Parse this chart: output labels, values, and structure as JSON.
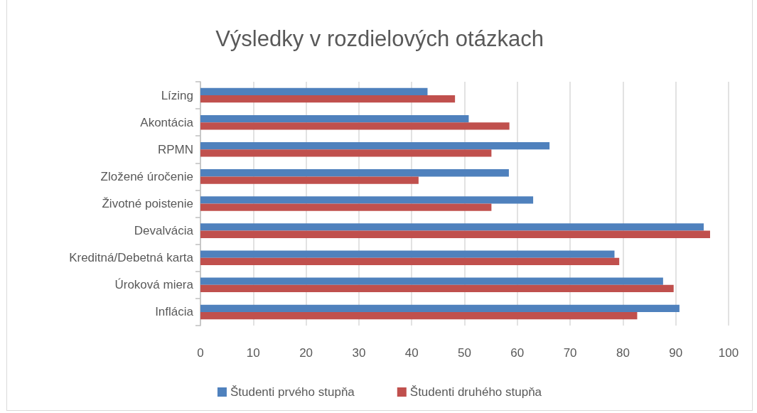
{
  "chart_data": {
    "type": "bar",
    "orientation": "horizontal",
    "title": "Výsledky v rozdielových otázkach",
    "categories": [
      "Lízing",
      "Akontácia",
      "RPMN",
      "Zložené úročenie",
      "Životné poistenie",
      "Devalvácia",
      "Kreditná/Debetná karta",
      "Úroková miera",
      "Inflácia"
    ],
    "series": [
      {
        "name": "Študenti prvého stupňa",
        "color": "#4f81bd",
        "values": [
          43.0,
          50.8,
          66.1,
          58.4,
          63.0,
          95.3,
          78.4,
          87.6,
          90.7
        ]
      },
      {
        "name": "Študenti druhého stupňa",
        "color": "#c0504d",
        "values": [
          48.2,
          58.5,
          55.1,
          41.3,
          55.1,
          96.5,
          79.3,
          89.6,
          82.7
        ]
      }
    ],
    "xlim": [
      0,
      100
    ],
    "xticks": [
      0,
      10,
      20,
      30,
      40,
      50,
      60,
      70,
      80,
      90,
      100
    ],
    "grid": "x",
    "legend": "bottom"
  }
}
